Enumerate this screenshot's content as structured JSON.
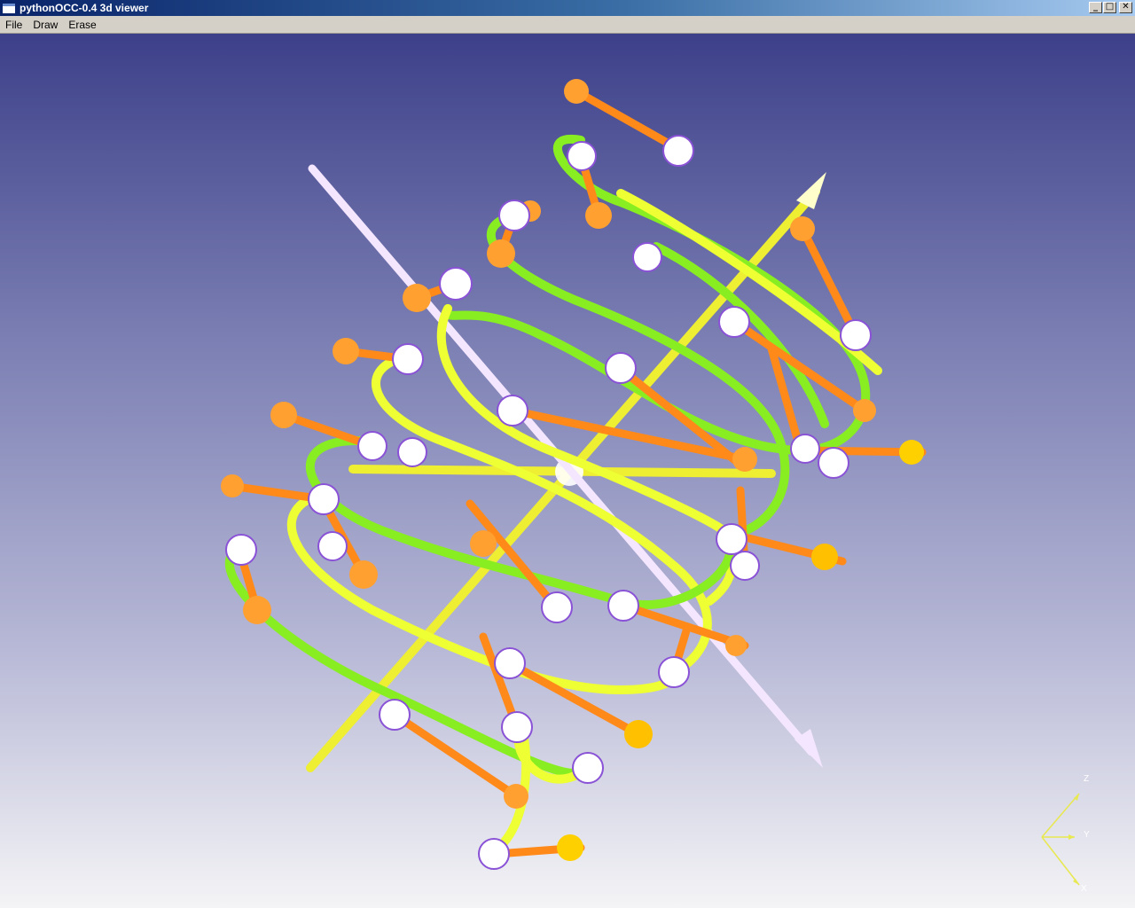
{
  "window": {
    "title": "pythonOCC-0.4 3d viewer",
    "controls": {
      "minimize": "_",
      "maximize": "□",
      "close": "✕"
    }
  },
  "menu": [
    {
      "label": "File"
    },
    {
      "label": "Draw"
    },
    {
      "label": "Erase"
    }
  ],
  "viewer": {
    "background_top": "#3d4089",
    "background_bottom": "#f4f4f6",
    "colors": {
      "curve_green": "#66ee22",
      "curve_yellow": "#ffff44",
      "axis_yellow": "#eeee33",
      "axis_white": "#f4e6ff",
      "vector_orange": "#ff8a1a",
      "vector_tip": "#ff6600",
      "point_white": "#ffffff",
      "point_outline": "#8a52d6"
    },
    "triedron": {
      "x_label": "X",
      "y_label": "Y",
      "z_label": "Z"
    }
  }
}
